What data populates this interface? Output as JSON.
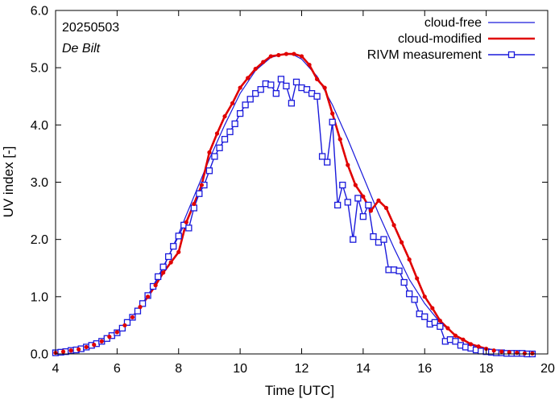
{
  "chart_data": {
    "type": "line",
    "title": "",
    "annotations": {
      "date": "20250503",
      "location": "De Bilt"
    },
    "xlabel": "Time  [UTC]",
    "ylabel": "UV index  [-]",
    "xlim": [
      4,
      20
    ],
    "ylim": [
      0,
      6
    ],
    "xticks": [
      4,
      6,
      8,
      10,
      12,
      14,
      16,
      18,
      20
    ],
    "yticks": [
      0,
      1,
      2,
      3,
      4,
      5,
      6
    ],
    "xtick_labels": [
      "4",
      "6",
      "8",
      "10",
      "12",
      "14",
      "16",
      "18",
      "20"
    ],
    "ytick_labels": [
      "0.0",
      "1.0",
      "2.0",
      "3.0",
      "4.0",
      "5.0",
      "6.0"
    ],
    "grid": false,
    "legend_position": "top-right",
    "series": [
      {
        "name": "cloud-free",
        "color": "#1a1adb",
        "style": "thin-line",
        "x": [
          4.0,
          4.5,
          5.0,
          5.5,
          6.0,
          6.5,
          7.0,
          7.5,
          8.0,
          8.5,
          9.0,
          9.5,
          10.0,
          10.5,
          11.0,
          11.5,
          11.75,
          12.0,
          12.5,
          13.0,
          13.5,
          14.0,
          14.5,
          15.0,
          15.5,
          16.0,
          16.5,
          17.0,
          17.5,
          18.0,
          18.5,
          19.0,
          19.5
        ],
        "values": [
          0.02,
          0.06,
          0.12,
          0.22,
          0.38,
          0.64,
          1.0,
          1.5,
          2.1,
          2.75,
          3.4,
          4.0,
          4.55,
          4.95,
          5.18,
          5.25,
          5.22,
          5.15,
          4.85,
          4.35,
          3.75,
          3.1,
          2.45,
          1.85,
          1.3,
          0.88,
          0.55,
          0.32,
          0.17,
          0.09,
          0.04,
          0.02,
          0.01
        ]
      },
      {
        "name": "cloud-modified",
        "color": "#e00000",
        "style": "thick-line-dots",
        "x": [
          4.0,
          4.25,
          4.5,
          4.75,
          5.0,
          5.25,
          5.5,
          5.75,
          6.0,
          6.25,
          6.5,
          6.75,
          7.0,
          7.25,
          7.5,
          7.75,
          8.0,
          8.25,
          8.5,
          8.75,
          9.0,
          9.25,
          9.5,
          9.75,
          10.0,
          10.25,
          10.5,
          10.75,
          11.0,
          11.25,
          11.5,
          11.75,
          12.0,
          12.25,
          12.5,
          12.75,
          13.0,
          13.25,
          13.5,
          13.75,
          14.0,
          14.25,
          14.5,
          14.75,
          15.0,
          15.25,
          15.5,
          15.75,
          16.0,
          16.25,
          16.5,
          16.75,
          17.0,
          17.25,
          17.5,
          17.75,
          18.0,
          18.25,
          18.5,
          18.75,
          19.0,
          19.25,
          19.5
        ],
        "values": [
          0.02,
          0.04,
          0.06,
          0.08,
          0.12,
          0.16,
          0.22,
          0.3,
          0.38,
          0.5,
          0.64,
          0.82,
          1.0,
          1.2,
          1.42,
          1.6,
          1.78,
          2.3,
          2.62,
          2.95,
          3.52,
          3.85,
          4.15,
          4.38,
          4.65,
          4.82,
          4.98,
          5.1,
          5.2,
          5.22,
          5.24,
          5.24,
          5.2,
          5.05,
          4.8,
          4.65,
          4.2,
          3.75,
          3.3,
          2.95,
          2.75,
          2.5,
          2.68,
          2.55,
          2.25,
          1.95,
          1.65,
          1.32,
          1.0,
          0.8,
          0.58,
          0.45,
          0.32,
          0.25,
          0.17,
          0.13,
          0.09,
          0.06,
          0.04,
          0.03,
          0.02,
          0.01,
          0.01
        ]
      },
      {
        "name": "RIVM measurement",
        "color": "#1a1adb",
        "style": "line-squares",
        "x": [
          4.0,
          4.17,
          4.33,
          4.5,
          4.67,
          4.83,
          5.0,
          5.17,
          5.33,
          5.5,
          5.67,
          5.83,
          6.0,
          6.17,
          6.33,
          6.5,
          6.67,
          6.83,
          7.0,
          7.17,
          7.33,
          7.5,
          7.67,
          7.83,
          8.0,
          8.17,
          8.33,
          8.5,
          8.67,
          8.83,
          9.0,
          9.17,
          9.33,
          9.5,
          9.67,
          9.83,
          10.0,
          10.17,
          10.33,
          10.5,
          10.67,
          10.83,
          11.0,
          11.17,
          11.33,
          11.5,
          11.67,
          11.83,
          12.0,
          12.17,
          12.33,
          12.5,
          12.67,
          12.83,
          13.0,
          13.17,
          13.33,
          13.5,
          13.67,
          13.83,
          14.0,
          14.17,
          14.33,
          14.5,
          14.67,
          14.83,
          15.0,
          15.17,
          15.33,
          15.5,
          15.67,
          15.83,
          16.0,
          16.17,
          16.33,
          16.5,
          16.67,
          16.83,
          17.0,
          17.17,
          17.33,
          17.5,
          17.67,
          17.83,
          18.0,
          18.17,
          18.33,
          18.5,
          18.67,
          18.83,
          19.0,
          19.17,
          19.33,
          19.5
        ],
        "values": [
          0.02,
          0.03,
          0.04,
          0.06,
          0.07,
          0.09,
          0.12,
          0.15,
          0.18,
          0.22,
          0.27,
          0.32,
          0.37,
          0.45,
          0.55,
          0.64,
          0.75,
          0.88,
          1.02,
          1.18,
          1.35,
          1.52,
          1.7,
          1.88,
          2.06,
          2.25,
          2.2,
          2.55,
          2.8,
          2.95,
          3.2,
          3.45,
          3.6,
          3.75,
          3.88,
          4.02,
          4.2,
          4.35,
          4.45,
          4.55,
          4.62,
          4.72,
          4.7,
          4.55,
          4.8,
          4.68,
          4.38,
          4.75,
          4.65,
          4.62,
          4.55,
          4.5,
          3.45,
          3.35,
          4.05,
          2.6,
          2.95,
          2.65,
          2.0,
          2.72,
          2.4,
          2.6,
          2.05,
          1.95,
          2.0,
          1.47,
          1.47,
          1.45,
          1.25,
          1.05,
          0.95,
          0.7,
          0.65,
          0.52,
          0.55,
          0.48,
          0.22,
          0.25,
          0.22,
          0.15,
          0.12,
          0.1,
          0.07,
          0.05,
          0.04,
          0.03,
          0.02,
          0.02,
          0.01,
          0.01,
          0.01,
          0.01,
          0.0,
          0.0
        ]
      }
    ]
  }
}
